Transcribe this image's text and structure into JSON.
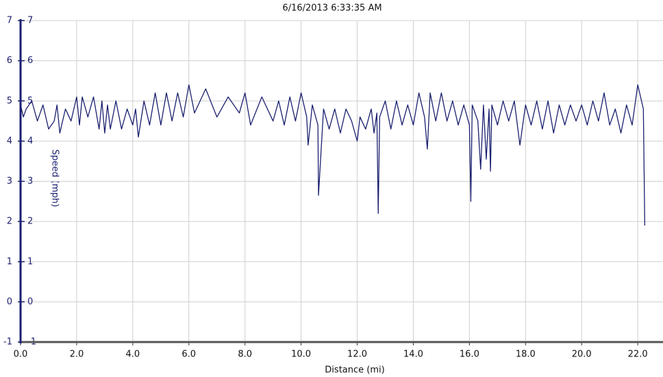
{
  "chart_data": {
    "type": "line",
    "title": "6/16/2013 6:33:35 AM",
    "x_label": "Distance (mi)",
    "y_label": "Speed (mph)",
    "x": [
      0,
      0.1,
      0.2,
      0.4,
      0.6,
      0.8,
      1.0,
      1.2,
      1.3,
      1.4,
      1.6,
      1.8,
      2.0,
      2.1,
      2.2,
      2.4,
      2.6,
      2.8,
      2.9,
      3.0,
      3.1,
      3.2,
      3.4,
      3.6,
      3.8,
      4.0,
      4.1,
      4.2,
      4.4,
      4.6,
      4.8,
      5.0,
      5.2,
      5.4,
      5.6,
      5.8,
      6.0,
      6.2,
      6.6,
      7.0,
      7.4,
      7.8,
      8.0,
      8.2,
      8.6,
      9.0,
      9.2,
      9.4,
      9.6,
      9.8,
      10.0,
      10.2,
      10.25,
      10.4,
      10.6,
      10.62,
      10.8,
      11.0,
      11.2,
      11.4,
      11.6,
      11.8,
      12.0,
      12.1,
      12.3,
      12.5,
      12.6,
      12.7,
      12.75,
      12.8,
      13.0,
      13.2,
      13.4,
      13.6,
      13.8,
      14.0,
      14.2,
      14.4,
      14.5,
      14.6,
      14.8,
      15.0,
      15.2,
      15.4,
      15.6,
      15.8,
      16.0,
      16.05,
      16.1,
      16.3,
      16.4,
      16.5,
      16.6,
      16.7,
      16.75,
      16.8,
      17.0,
      17.2,
      17.4,
      17.6,
      17.8,
      18.0,
      18.2,
      18.4,
      18.6,
      18.8,
      19.0,
      19.2,
      19.4,
      19.6,
      19.8,
      20.0,
      20.2,
      20.4,
      20.6,
      20.8,
      21.0,
      21.2,
      21.4,
      21.6,
      21.8,
      22.0,
      22.2,
      22.25
    ],
    "series": [
      {
        "color": "#1a1f6e",
        "values": [
          4.9,
          4.6,
          4.8,
          5.0,
          4.5,
          4.9,
          4.3,
          4.5,
          4.9,
          4.2,
          4.8,
          4.5,
          5.1,
          4.4,
          5.1,
          4.6,
          5.1,
          4.3,
          5.0,
          4.2,
          4.9,
          4.3,
          5.0,
          4.3,
          4.8,
          4.4,
          4.8,
          4.1,
          5.0,
          4.4,
          5.2,
          4.4,
          5.2,
          4.5,
          5.2,
          4.6,
          5.4,
          4.7,
          5.3,
          4.6,
          5.1,
          4.7,
          5.2,
          4.4,
          5.1,
          4.5,
          5.0,
          4.4,
          5.1,
          4.5,
          5.2,
          4.6,
          3.9,
          4.9,
          4.4,
          2.65,
          4.8,
          4.3,
          4.8,
          4.2,
          4.8,
          4.5,
          4.0,
          4.6,
          4.3,
          4.8,
          4.2,
          4.7,
          2.2,
          4.6,
          5.0,
          4.3,
          5.0,
          4.4,
          4.9,
          4.4,
          5.2,
          4.6,
          3.8,
          5.2,
          4.5,
          5.2,
          4.5,
          5.0,
          4.4,
          4.9,
          4.4,
          2.5,
          4.9,
          4.5,
          3.3,
          4.9,
          3.55,
          4.8,
          3.25,
          4.9,
          4.4,
          5.0,
          4.5,
          5.0,
          3.9,
          4.9,
          4.4,
          5.0,
          4.3,
          5.0,
          4.2,
          4.9,
          4.4,
          4.9,
          4.5,
          4.9,
          4.4,
          5.0,
          4.5,
          5.2,
          4.4,
          4.8,
          4.2,
          4.9,
          4.4,
          5.4,
          4.8,
          1.9
        ]
      }
    ],
    "xlim": [
      0,
      22.9
    ],
    "ylim": [
      -1,
      7
    ],
    "xticks": [
      {
        "value": 0,
        "label": "0.0"
      },
      {
        "value": 2,
        "label": "2.0"
      },
      {
        "value": 4,
        "label": "4.0"
      },
      {
        "value": 6,
        "label": "6.0"
      },
      {
        "value": 8,
        "label": "8.0"
      },
      {
        "value": 10,
        "label": "10.0"
      },
      {
        "value": 12,
        "label": "12.0"
      },
      {
        "value": 14,
        "label": "14.0"
      },
      {
        "value": 16,
        "label": "16.0"
      },
      {
        "value": 18,
        "label": "18.0"
      },
      {
        "value": 20,
        "label": "20.0"
      },
      {
        "value": 22,
        "label": "22.0"
      }
    ],
    "yticks": [
      -1,
      0,
      1,
      2,
      3,
      4,
      5,
      6,
      7
    ],
    "grid": true
  }
}
